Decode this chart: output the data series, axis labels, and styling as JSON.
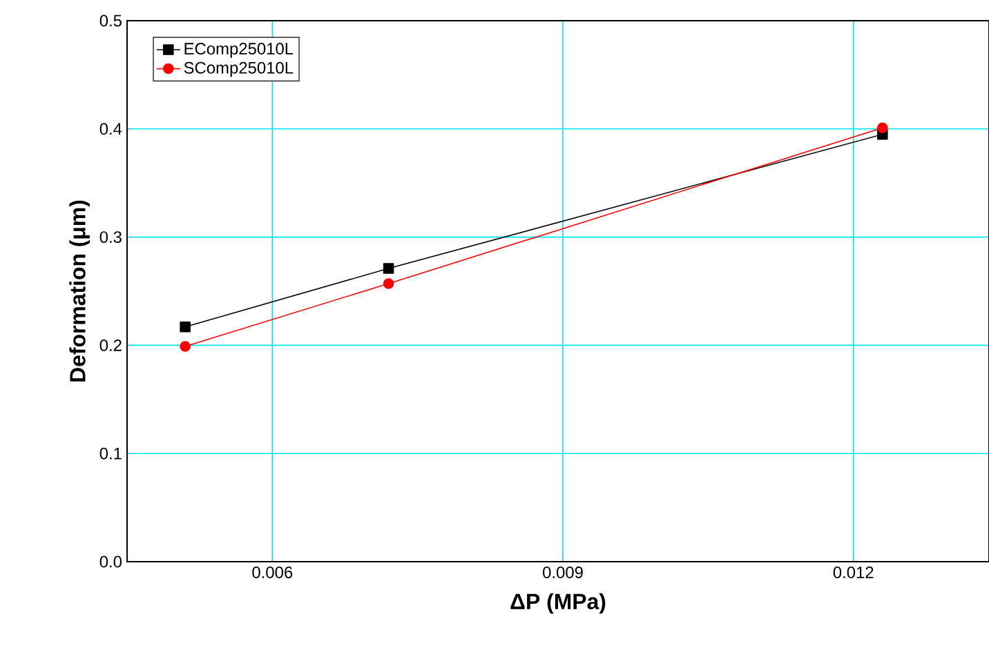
{
  "chart_data": {
    "type": "line",
    "xlabel": "ΔP (MPa)",
    "ylabel": "Deformation (μm)",
    "x": [
      0.0051,
      0.0072,
      0.0123
    ],
    "series": [
      {
        "name": "EComp25010L",
        "color": "#000000",
        "marker": "square",
        "values": [
          0.217,
          0.271,
          0.395
        ]
      },
      {
        "name": "SComp25010L",
        "color": "#ff0000",
        "marker": "circle",
        "values": [
          0.199,
          0.257,
          0.401
        ]
      }
    ],
    "xlim": [
      0.0045,
      0.0134
    ],
    "ylim": [
      0,
      0.5
    ],
    "xticks": [
      {
        "value": 0.006,
        "label": "0.006"
      },
      {
        "value": 0.009,
        "label": "0.009"
      },
      {
        "value": 0.012,
        "label": "0.012"
      }
    ],
    "yticks": [
      {
        "value": 0,
        "label": "0.0"
      },
      {
        "value": 0.1,
        "label": "0.1"
      },
      {
        "value": 0.2,
        "label": "0.2"
      },
      {
        "value": 0.3,
        "label": "0.3"
      },
      {
        "value": 0.4,
        "label": "0.4"
      },
      {
        "value": 0.5,
        "label": "0.5"
      }
    ],
    "grid": true,
    "legend": "top left",
    "line_style": "solid"
  }
}
